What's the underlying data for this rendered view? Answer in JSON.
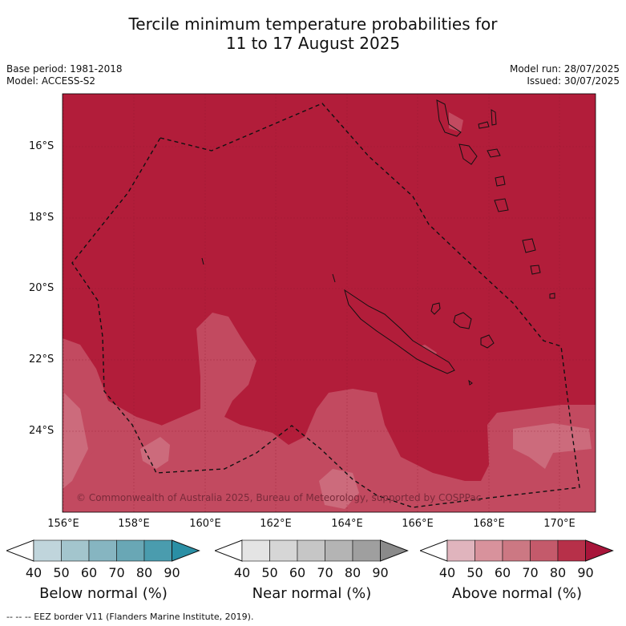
{
  "header": {
    "title_line1": "Tercile minimum temperature probabilities for",
    "title_line2": "11 to 17 August 2025",
    "base_period": "Base period: 1981-2018",
    "model": "Model: ACCESS-S2",
    "model_run": "Model run: 28/07/2025",
    "issued": "Issued: 30/07/2025"
  },
  "map": {
    "lat_labels": [
      "16°S",
      "18°S",
      "20°S",
      "22°S",
      "24°S"
    ],
    "lon_labels": [
      "156°E",
      "158°E",
      "160°E",
      "162°E",
      "164°E",
      "166°E",
      "168°E",
      "170°E"
    ],
    "copyright": "© Commonwealth of Australia 2025, Bureau of Meteorology, supported by COSPPac",
    "dominant_category": "Above normal",
    "dominant_band": "80-90",
    "colors": {
      "above_90": "#b21d3a",
      "above_80": "#c85a6c",
      "above_70": "#d38590"
    }
  },
  "legends": [
    {
      "label": "Below normal (%)",
      "ticks": [
        "40",
        "50",
        "60",
        "70",
        "80",
        "90"
      ],
      "colors": [
        "#c0d5dc",
        "#a3c5cd",
        "#86b5c1",
        "#69a7b5",
        "#4a9cae",
        "#2a8fa5"
      ]
    },
    {
      "label": "Near normal (%)",
      "ticks": [
        "40",
        "50",
        "60",
        "70",
        "80",
        "90"
      ],
      "colors": [
        "#e4e4e4",
        "#d6d6d6",
        "#c6c6c6",
        "#b4b4b4",
        "#9f9f9f",
        "#8a8a8a"
      ]
    },
    {
      "label": "Above normal (%)",
      "ticks": [
        "40",
        "50",
        "60",
        "70",
        "80",
        "90"
      ],
      "colors": [
        "#e0b4bd",
        "#d8929c",
        "#cc7883",
        "#c45a6b",
        "#b73049",
        "#a8153a"
      ]
    }
  ],
  "footer": "--  --  -- EEZ border V11 (Flanders Marine Institute, 2019)."
}
